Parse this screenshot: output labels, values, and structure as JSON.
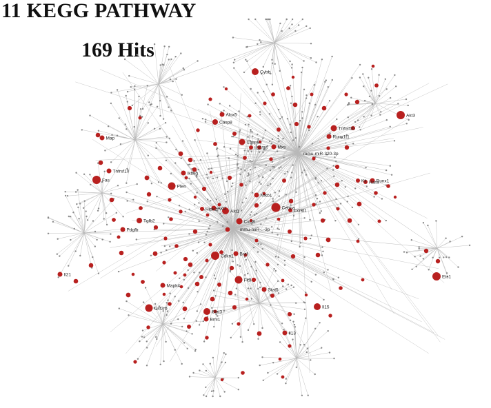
{
  "title": "11 KEGG PATHWAY",
  "subtitle": "169 Hits",
  "colors": {
    "node": "#b8201f",
    "edge": "#b9b9b9",
    "leaf": "#8a8a8a",
    "text": "#222222"
  },
  "hubs": [
    {
      "name": "mmu-miR-320-3p"
    },
    {
      "name": "mmu-miR-..-3p"
    }
  ],
  "genes": [
    {
      "name": "Cybb"
    },
    {
      "name": "Alox5"
    },
    {
      "name": "Casp8"
    },
    {
      "name": "Casp9"
    },
    {
      "name": "Il10"
    },
    {
      "name": "Tnfrsf1b"
    },
    {
      "name": "Runx1t1"
    },
    {
      "name": "Map"
    },
    {
      "name": "Mxs"
    },
    {
      "name": "Il6"
    },
    {
      "name": "Tnfrsf10"
    },
    {
      "name": "Fas"
    },
    {
      "name": "Pten"
    },
    {
      "name": "Ikbkg"
    },
    {
      "name": "Nfkb1"
    },
    {
      "name": "Cebpa"
    },
    {
      "name": "Ccnd1"
    },
    {
      "name": "Cxcl8"
    },
    {
      "name": "Hipk2"
    },
    {
      "name": "Tgfb2"
    },
    {
      "name": "Pdgfb"
    },
    {
      "name": "Cdkn1"
    },
    {
      "name": "Akt1"
    },
    {
      "name": "Braf"
    },
    {
      "name": "Flt3"
    },
    {
      "name": "Akt3"
    },
    {
      "name": "Il21"
    },
    {
      "name": "Mapk4"
    },
    {
      "name": "Stat3"
    },
    {
      "name": "Bmi1"
    },
    {
      "name": "Csf2rb"
    },
    {
      "name": "Stat5"
    },
    {
      "name": "Runx1"
    },
    {
      "name": "Il15"
    },
    {
      "name": "Il13"
    },
    {
      "name": "Ets1"
    },
    {
      "name": "Akt2"
    },
    {
      "name": "Kit"
    },
    {
      "name": "Rara"
    }
  ]
}
